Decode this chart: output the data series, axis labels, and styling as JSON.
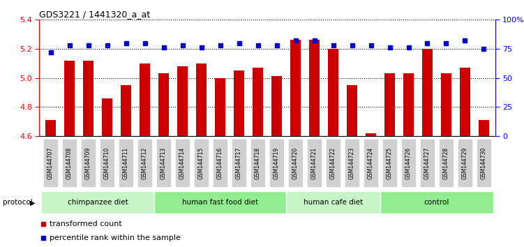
{
  "title": "GDS3221 / 1441320_a_at",
  "samples": [
    "GSM144707",
    "GSM144708",
    "GSM144709",
    "GSM144710",
    "GSM144711",
    "GSM144712",
    "GSM144713",
    "GSM144714",
    "GSM144715",
    "GSM144716",
    "GSM144717",
    "GSM144718",
    "GSM144719",
    "GSM144720",
    "GSM144721",
    "GSM144722",
    "GSM144723",
    "GSM144724",
    "GSM144725",
    "GSM144726",
    "GSM144727",
    "GSM144728",
    "GSM144729",
    "GSM144730"
  ],
  "bar_values": [
    4.71,
    5.12,
    5.12,
    4.86,
    4.95,
    5.1,
    5.03,
    5.08,
    5.1,
    5.0,
    5.05,
    5.07,
    5.01,
    5.26,
    5.26,
    5.2,
    4.95,
    4.62,
    5.03,
    5.03,
    5.2,
    5.03,
    5.07,
    4.71
  ],
  "percentile_values": [
    72,
    78,
    78,
    78,
    80,
    80,
    76,
    78,
    76,
    78,
    80,
    78,
    78,
    82,
    82,
    78,
    78,
    78,
    76,
    76,
    80,
    80,
    82,
    75
  ],
  "groups": [
    {
      "label": "chimpanzee diet",
      "start": 0,
      "end": 6,
      "color": "#c8f5c8"
    },
    {
      "label": "human fast food diet",
      "start": 6,
      "end": 13,
      "color": "#90EE90"
    },
    {
      "label": "human cafe diet",
      "start": 13,
      "end": 18,
      "color": "#c8f5c8"
    },
    {
      "label": "control",
      "start": 18,
      "end": 24,
      "color": "#90EE90"
    }
  ],
  "ylim_left": [
    4.6,
    5.4
  ],
  "ylim_right": [
    0,
    100
  ],
  "yticks_left": [
    4.6,
    4.8,
    5.0,
    5.2,
    5.4
  ],
  "yticks_right": [
    0,
    25,
    50,
    75,
    100
  ],
  "bar_color": "#CC0000",
  "dot_color": "#0000CC",
  "bar_baseline": 4.6,
  "background_color": "#ffffff",
  "tick_label_bg": "#d8d8d8",
  "legend_red_label": "transformed count",
  "legend_blue_label": "percentile rank within the sample",
  "protocol_label": "protocol"
}
